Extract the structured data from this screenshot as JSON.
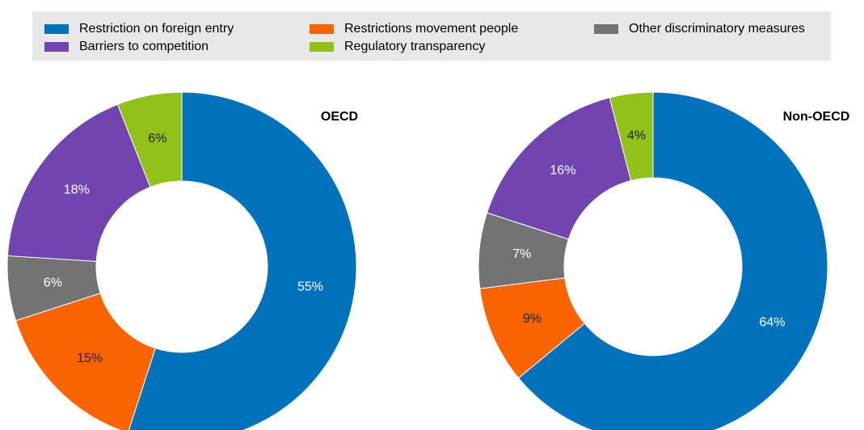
{
  "legend": {
    "categories": [
      "Restriction on foreign entry",
      "Restrictions movement people",
      "Other discriminatory measures",
      "Barriers to competition",
      "Regulatory transparency"
    ],
    "colors": [
      "#0072bc",
      "#f96400",
      "#737373",
      "#7045af",
      "#92c11a"
    ]
  },
  "chart_data": [
    {
      "type": "donut",
      "title": "OECD",
      "values": [
        55,
        15,
        6,
        18,
        6
      ],
      "value_labels": [
        "55%",
        "15%",
        "6%",
        "18%",
        "6%"
      ]
    },
    {
      "type": "donut",
      "title": "Non-OECD",
      "values": [
        64,
        9,
        7,
        16,
        4
      ],
      "value_labels": [
        "64%",
        "9%",
        "7%",
        "16%",
        "4%"
      ]
    }
  ]
}
